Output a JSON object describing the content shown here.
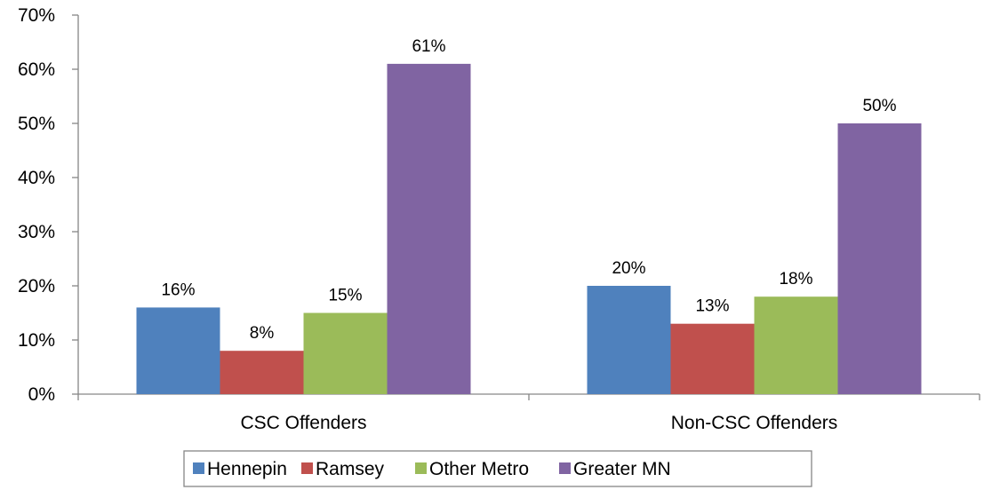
{
  "chart_data": {
    "type": "bar",
    "categories": [
      "CSC Offenders",
      "Non-CSC Offenders"
    ],
    "series": [
      {
        "name": "Hennepin",
        "color": "#4F81BD",
        "values": [
          16,
          20
        ]
      },
      {
        "name": "Ramsey",
        "color": "#C0504D",
        "values": [
          8,
          13
        ]
      },
      {
        "name": "Other Metro",
        "color": "#9BBB59",
        "values": [
          15,
          18
        ]
      },
      {
        "name": "Greater MN",
        "color": "#8064A2",
        "values": [
          61,
          50
        ]
      }
    ],
    "data_labels": [
      [
        "16%",
        "20%"
      ],
      [
        "8%",
        "13%"
      ],
      [
        "15%",
        "18%"
      ],
      [
        "61%",
        "50%"
      ]
    ],
    "y_ticks": [
      "0%",
      "10%",
      "20%",
      "30%",
      "40%",
      "50%",
      "60%",
      "70%"
    ],
    "ylim": [
      0,
      70
    ],
    "grid": false,
    "legend_position": "bottom"
  }
}
